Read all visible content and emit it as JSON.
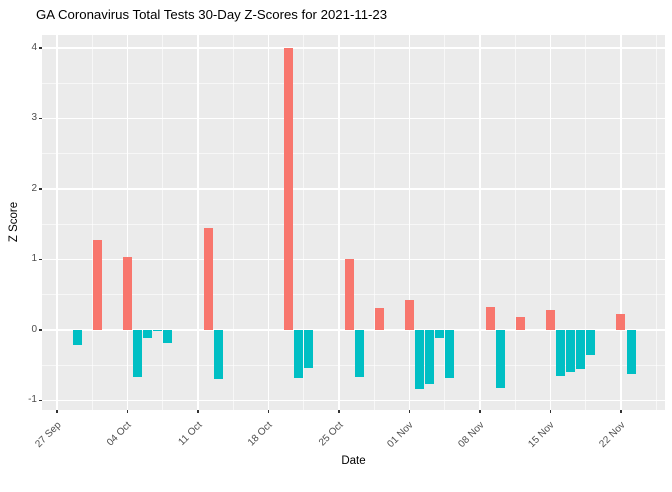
{
  "chart_data": {
    "type": "bar",
    "title": "GA Coronavirus Total Tests 30-Day Z-Scores for 2021-11-23",
    "xlabel": "Date",
    "ylabel": "Z Score",
    "legend": "none",
    "grid": true,
    "ylim": [
      -1.135,
      4.184
    ],
    "y_major_ticks": [
      4,
      3,
      2,
      1,
      0,
      -1
    ],
    "y_tick_labels": [
      "4",
      "3",
      "2",
      "1",
      "0",
      "-1"
    ],
    "y_minor_ticks": [
      3.5,
      2.5,
      1.5,
      0.5,
      -0.5
    ],
    "x_tick_days": [
      0,
      7,
      14,
      21,
      28,
      35,
      42,
      49,
      56
    ],
    "x_tick_labels": [
      "27 Sep",
      "04 Oct",
      "11 Oct",
      "18 Oct",
      "25 Oct",
      "01 Nov",
      "08 Nov",
      "15 Nov",
      "22 Nov"
    ],
    "x_minor_days": [
      3.5,
      10.5,
      17.5,
      24.5,
      31.5,
      38.5,
      45.5,
      52.5,
      59.5
    ],
    "x_start_date": "2021-09-27",
    "colors": {
      "positive": "#F8766D",
      "negative": "#00BFC4",
      "panel_bg": "#EBEBEB",
      "grid": "#FFFFFF",
      "tick_label": "#4D4D4D",
      "text": "#000000",
      "background": "#FFFFFF"
    },
    "points": [
      {
        "date": "2021-09-29",
        "day": 2,
        "value": -0.21
      },
      {
        "date": "2021-10-01",
        "day": 4,
        "value": 1.28
      },
      {
        "date": "2021-10-04",
        "day": 7,
        "value": 1.04
      },
      {
        "date": "2021-10-05",
        "day": 8,
        "value": -0.67
      },
      {
        "date": "2021-10-06",
        "day": 9,
        "value": -0.11
      },
      {
        "date": "2021-10-07",
        "day": 10,
        "value": -0.02
      },
      {
        "date": "2021-10-08",
        "day": 11,
        "value": -0.18
      },
      {
        "date": "2021-10-12",
        "day": 15,
        "value": 1.45
      },
      {
        "date": "2021-10-13",
        "day": 16,
        "value": -0.7
      },
      {
        "date": "2021-10-20",
        "day": 23,
        "value": 4.0
      },
      {
        "date": "2021-10-21",
        "day": 24,
        "value": -0.68
      },
      {
        "date": "2021-10-22",
        "day": 25,
        "value": -0.54
      },
      {
        "date": "2021-10-26",
        "day": 29,
        "value": 1.01
      },
      {
        "date": "2021-10-27",
        "day": 30,
        "value": -0.67
      },
      {
        "date": "2021-10-29",
        "day": 32,
        "value": 0.31
      },
      {
        "date": "2021-11-01",
        "day": 35,
        "value": 0.42
      },
      {
        "date": "2021-11-02",
        "day": 36,
        "value": -0.84
      },
      {
        "date": "2021-11-03",
        "day": 37,
        "value": -0.77
      },
      {
        "date": "2021-11-04",
        "day": 38,
        "value": -0.11
      },
      {
        "date": "2021-11-05",
        "day": 39,
        "value": -0.68
      },
      {
        "date": "2021-11-09",
        "day": 43,
        "value": 0.32
      },
      {
        "date": "2021-11-10",
        "day": 44,
        "value": -0.83
      },
      {
        "date": "2021-11-12",
        "day": 46,
        "value": 0.18
      },
      {
        "date": "2021-11-15",
        "day": 49,
        "value": 0.29
      },
      {
        "date": "2021-11-16",
        "day": 50,
        "value": -0.66
      },
      {
        "date": "2021-11-17",
        "day": 51,
        "value": -0.6
      },
      {
        "date": "2021-11-18",
        "day": 52,
        "value": -0.55
      },
      {
        "date": "2021-11-19",
        "day": 53,
        "value": -0.35
      },
      {
        "date": "2021-11-22",
        "day": 56,
        "value": 0.22
      },
      {
        "date": "2021-11-23",
        "day": 57,
        "value": -0.63
      }
    ]
  }
}
